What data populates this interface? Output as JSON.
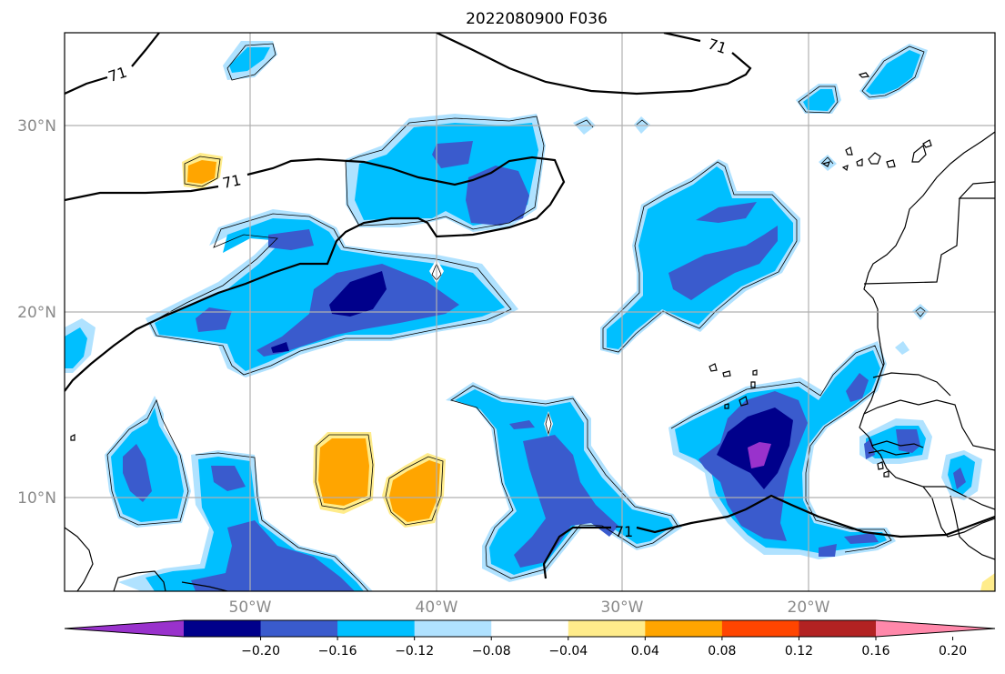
{
  "title": "2022080900 F036",
  "lat_labels": [
    "30°N",
    "20°N",
    "10°N"
  ],
  "lon_labels": [
    "50°W",
    "40°W",
    "30°W",
    "20°W"
  ],
  "contour_label": "71",
  "colorbar": {
    "ticks": [
      "−0.20",
      "−0.16",
      "−0.12",
      "−0.08",
      "−0.04",
      "0.04",
      "0.08",
      "0.12",
      "0.16",
      "0.20"
    ],
    "colors": [
      "#9932cc",
      "#00008b",
      "#3a5bcd",
      "#00bfff",
      "#b0e2ff",
      "#ffffff",
      "#ffec8b",
      "#ffa500",
      "#ff4500",
      "#b22222",
      "#ff88aa"
    ]
  }
}
